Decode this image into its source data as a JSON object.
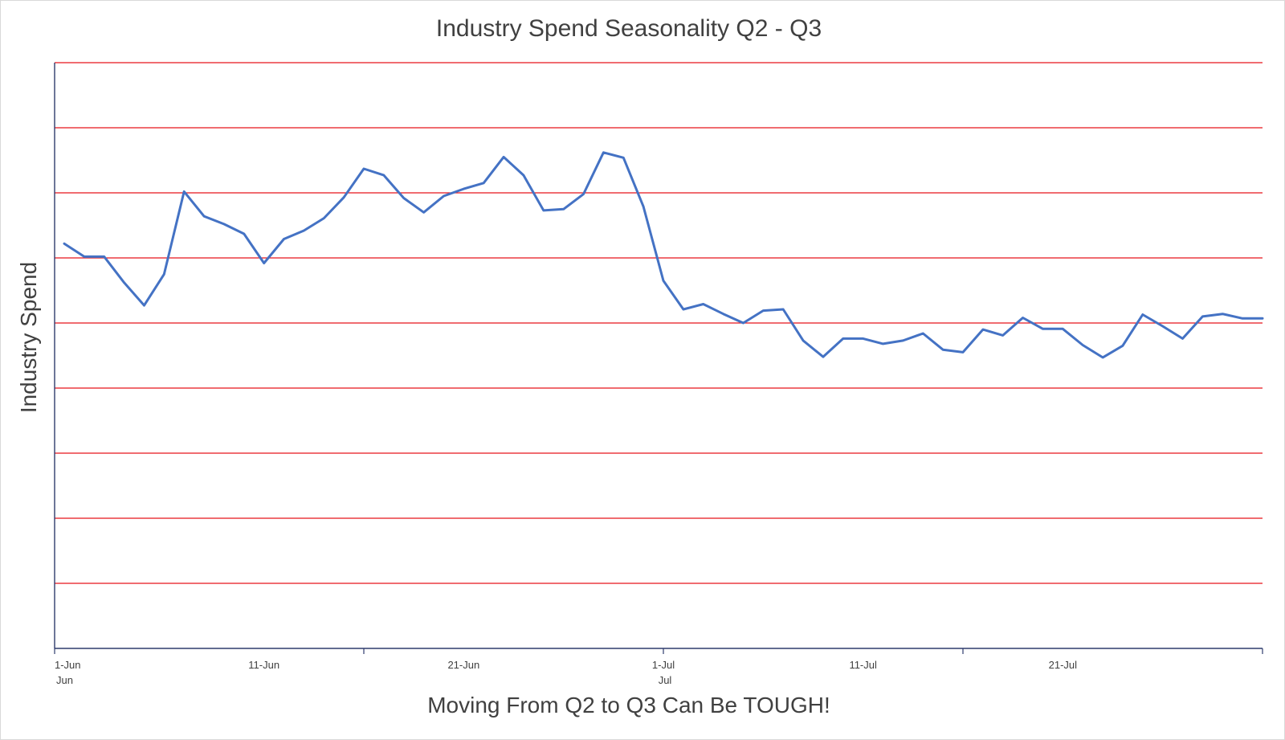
{
  "chart_data": {
    "type": "line",
    "title": "Industry Spend Seasonality Q2 - Q3",
    "xlabel": "Moving From Q2 to Q3 Can Be TOUGH!",
    "ylabel": "Industry Spend",
    "y_tick_labels_shown": false,
    "ylim": [
      0,
      9
    ],
    "gridlines": {
      "horizontal": true,
      "color": "#e8141b"
    },
    "legend": "none",
    "x_start": "1-Jun",
    "x_end": "31-Jul",
    "x_tick_labels": [
      {
        "day_index": 0,
        "label": "1-Jun",
        "group": "Jun"
      },
      {
        "day_index": 10,
        "label": "11-Jun",
        "group": ""
      },
      {
        "day_index": 20,
        "label": "21-Jun",
        "group": ""
      },
      {
        "day_index": 30,
        "label": "1-Jul",
        "group": "Jul"
      },
      {
        "day_index": 40,
        "label": "11-Jul",
        "group": ""
      },
      {
        "day_index": 50,
        "label": "21-Jul",
        "group": ""
      }
    ],
    "series": [
      {
        "color": "#4472c4",
        "x": [
          "1-Jun",
          "2-Jun",
          "3-Jun",
          "4-Jun",
          "5-Jun",
          "6-Jun",
          "7-Jun",
          "8-Jun",
          "9-Jun",
          "10-Jun",
          "11-Jun",
          "12-Jun",
          "13-Jun",
          "14-Jun",
          "15-Jun",
          "16-Jun",
          "17-Jun",
          "18-Jun",
          "19-Jun",
          "20-Jun",
          "21-Jun",
          "22-Jun",
          "23-Jun",
          "24-Jun",
          "25-Jun",
          "26-Jun",
          "27-Jun",
          "28-Jun",
          "29-Jun",
          "30-Jun",
          "1-Jul",
          "2-Jul",
          "3-Jul",
          "4-Jul",
          "5-Jul",
          "6-Jul",
          "7-Jul",
          "8-Jul",
          "9-Jul",
          "10-Jul",
          "11-Jul",
          "12-Jul",
          "13-Jul",
          "14-Jul",
          "15-Jul",
          "16-Jul",
          "17-Jul",
          "18-Jul",
          "19-Jul",
          "20-Jul",
          "21-Jul",
          "22-Jul",
          "23-Jul",
          "24-Jul",
          "25-Jul",
          "26-Jul",
          "27-Jul",
          "28-Jul",
          "29-Jul",
          "30-Jul",
          "31-Jul"
        ],
        "values": [
          6.22,
          6.02,
          6.02,
          5.62,
          5.27,
          5.75,
          7.02,
          6.64,
          6.52,
          6.37,
          5.92,
          6.29,
          6.42,
          6.61,
          6.93,
          7.37,
          7.27,
          6.92,
          6.7,
          6.95,
          7.06,
          7.15,
          7.55,
          7.27,
          6.73,
          6.75,
          6.98,
          7.62,
          7.54,
          6.79,
          5.65,
          5.21,
          5.29,
          5.14,
          5.0,
          5.19,
          5.21,
          4.73,
          4.48,
          4.76,
          4.76,
          4.68,
          4.73,
          4.84,
          4.59,
          4.55,
          4.9,
          4.81,
          5.08,
          4.91,
          4.91,
          4.66,
          4.47,
          4.65,
          5.13,
          4.95,
          4.76,
          5.1,
          5.14,
          5.07,
          5.07
        ]
      }
    ]
  }
}
